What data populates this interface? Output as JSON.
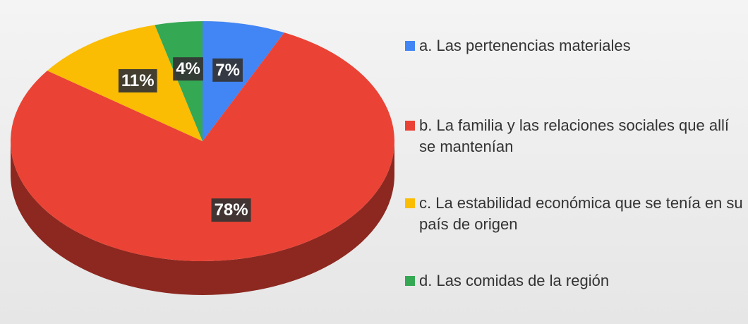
{
  "chart_data": {
    "type": "pie",
    "categories": [
      "a. Las pertenencias materiales",
      "b. La familia y las relaciones sociales que allí se mantenían",
      "c. La estabilidad económica que se tenía en su país de origen",
      "d. Las comidas de la región"
    ],
    "values": [
      7,
      78,
      11,
      4
    ],
    "value_labels": [
      "7%",
      "78%",
      "11%",
      "4%"
    ],
    "colors": [
      "#4285f4",
      "#ea4335",
      "#fbbc04",
      "#34a853"
    ],
    "legend": "right"
  }
}
